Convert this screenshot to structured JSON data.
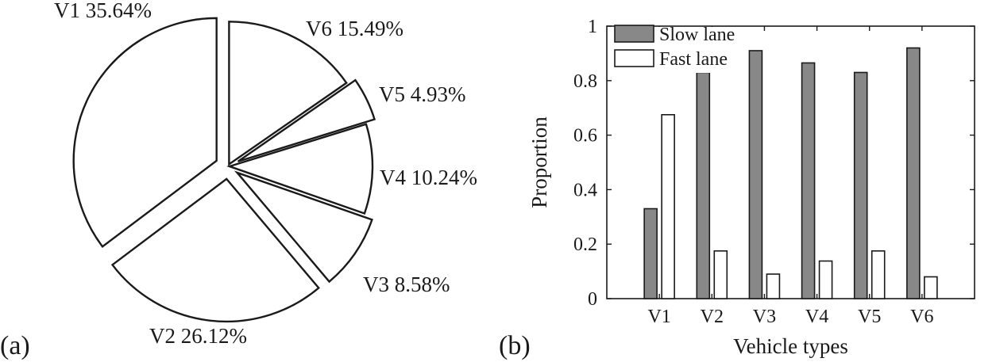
{
  "panels": [
    {
      "label": "(a)"
    },
    {
      "label": "(b)"
    }
  ],
  "colors": {
    "ink": "#1a1a1a",
    "slow": "#888888",
    "fast": "#ffffff"
  },
  "chart_data": [
    {
      "type": "pie",
      "title": "",
      "exploded": true,
      "slices": [
        {
          "name": "V1",
          "value": 35.64,
          "label": "V1 35.64%"
        },
        {
          "name": "V6",
          "value": 15.49,
          "label": "V6 15.49%"
        },
        {
          "name": "V5",
          "value": 4.93,
          "label": "V5 4.93%"
        },
        {
          "name": "V4",
          "value": 10.24,
          "label": "V4 10.24%"
        },
        {
          "name": "V3",
          "value": 8.58,
          "label": "V3 8.58%"
        },
        {
          "name": "V2",
          "value": 26.12,
          "label": "V2 26.12%"
        }
      ]
    },
    {
      "type": "bar",
      "title": "",
      "xlabel": "Vehicle types",
      "ylabel": "Proportion",
      "ylim": [
        0,
        1
      ],
      "yticks": [
        0,
        0.2,
        0.4,
        0.6,
        0.8,
        1
      ],
      "ytick_labels": [
        "0",
        "0.2",
        "0.4",
        "0.6",
        "0.8",
        "1"
      ],
      "categories": [
        "V1",
        "V2",
        "V3",
        "V4",
        "V5",
        "V6"
      ],
      "series": [
        {
          "name": "Slow lane",
          "values": [
            0.33,
            0.83,
            0.91,
            0.865,
            0.83,
            0.92
          ]
        },
        {
          "name": "Fast lane",
          "values": [
            0.675,
            0.175,
            0.09,
            0.138,
            0.175,
            0.08
          ]
        }
      ],
      "legend_position": "top-left"
    }
  ]
}
